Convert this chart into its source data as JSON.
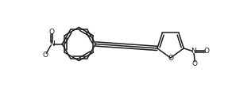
{
  "bg_color": "#ffffff",
  "line_color": "#1a1a1a",
  "line_width": 1.1,
  "figsize": [
    2.92,
    1.11
  ],
  "dpi": 100,
  "xlim": [
    0,
    10
  ],
  "ylim": [
    0,
    3.8
  ]
}
